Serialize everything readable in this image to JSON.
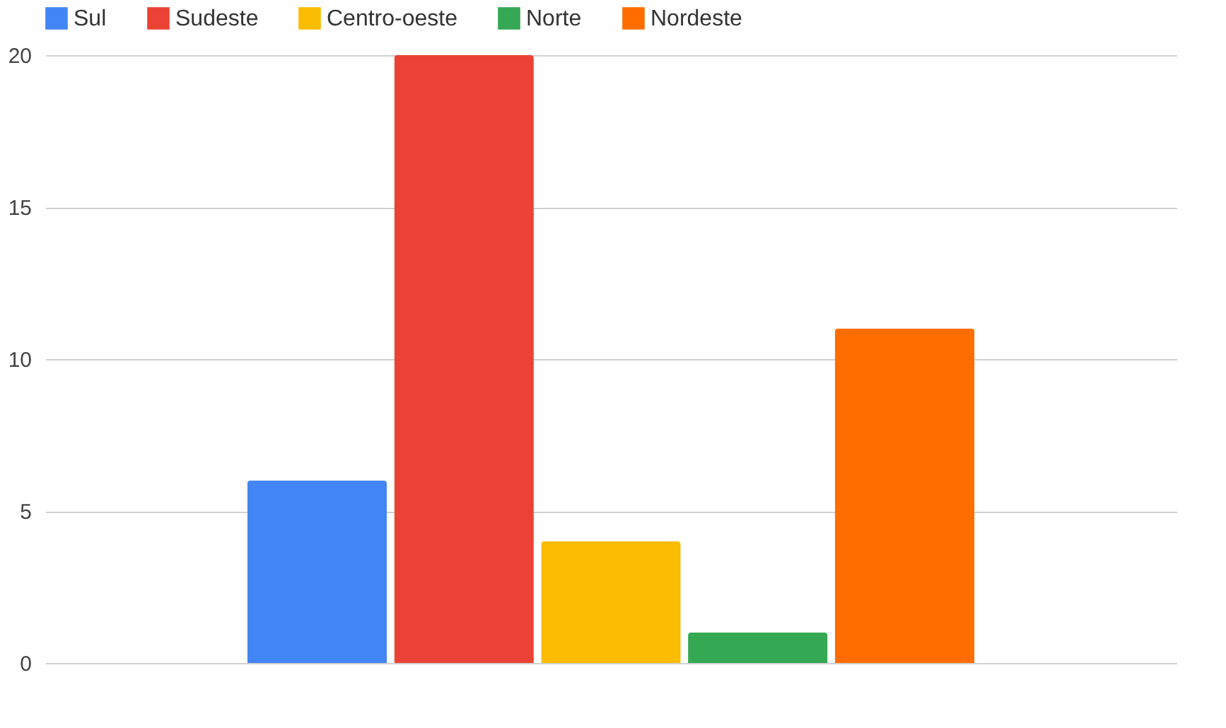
{
  "chart_data": {
    "type": "bar",
    "categories": [
      null
    ],
    "series": [
      {
        "name": "Sul",
        "color": "#4285f4",
        "values": [
          6
        ]
      },
      {
        "name": "Sudeste",
        "color": "#ea4335",
        "values": [
          20
        ]
      },
      {
        "name": "Centro-oeste",
        "color": "#fbbc04",
        "values": [
          4
        ]
      },
      {
        "name": "Norte",
        "color": "#34a853",
        "values": [
          1
        ]
      },
      {
        "name": "Nordeste",
        "color": "#ff6d01",
        "values": [
          11
        ]
      }
    ],
    "ylim": [
      0,
      20
    ],
    "yticks": [
      0,
      5,
      10,
      15,
      20
    ],
    "grid": "y",
    "legend": "top",
    "tick_labels": "y"
  }
}
